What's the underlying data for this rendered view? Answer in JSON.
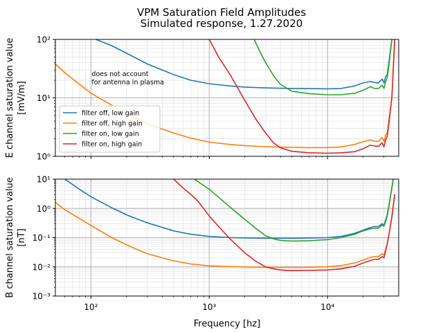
{
  "figure": {
    "title_line1": "VPM Saturation Field Amplitudes",
    "title_line2": "Simulated response, 1.27.2020",
    "xlabel": "Frequency [hz]"
  },
  "colors": {
    "filter_off_low": "#1f77b4",
    "filter_off_high": "#ff7f0e",
    "filter_on_low": "#2ca02c",
    "filter_on_high": "#d62728",
    "grid_major": "#b0b0b0",
    "grid_minor": "#e4e4e4"
  },
  "chart_data": [
    {
      "type": "line",
      "panel": "E",
      "ylabel_line1": "E channel saturation value",
      "ylabel_line2": "[mV/m]",
      "xscale": "log",
      "yscale": "log",
      "xlim": [
        50,
        40000
      ],
      "ylim": [
        1,
        100
      ],
      "x_ticks": [
        100,
        1000,
        10000
      ],
      "x_tick_labels": [
        "",
        "",
        ""
      ],
      "y_ticks": [
        1,
        10,
        100
      ],
      "y_tick_labels": [
        "10⁰",
        "10¹",
        "10²"
      ],
      "grid": true,
      "legend_position": "center-left",
      "annotation_line1": "does not account",
      "annotation_line2": "for antenna in plasma",
      "annotation_x": 100,
      "annotation_y": 20,
      "series": [
        {
          "name": "filter off, low gain",
          "color_key": "filter_off_low",
          "x": [
            110,
            150,
            200,
            300,
            500,
            700,
            1000,
            1500,
            2000,
            3000,
            5000,
            7000,
            10000,
            13000,
            17000,
            20000,
            23000,
            25000,
            27000,
            29000,
            30000,
            31000,
            32000,
            33000,
            35000,
            37000
          ],
          "y": [
            100,
            78,
            58,
            38,
            25,
            20,
            17.5,
            16,
            15.3,
            14.8,
            14.5,
            14.4,
            14.3,
            14.5,
            16,
            18,
            19,
            18.3,
            18,
            21,
            18,
            23,
            25,
            40,
            100,
            200
          ]
        },
        {
          "name": "filter off, high gain",
          "color_key": "filter_off_high",
          "x": [
            50,
            60,
            80,
            100,
            150,
            200,
            300,
            500,
            700,
            1000,
            1500,
            2000,
            3000,
            5000,
            7000,
            10000,
            13000,
            17000,
            20000,
            23000,
            25000,
            27000,
            29000,
            30000,
            31000,
            32000,
            33000,
            35000,
            37000
          ],
          "y": [
            38,
            27,
            17,
            12,
            7.5,
            5.3,
            3.6,
            2.5,
            2.05,
            1.75,
            1.6,
            1.52,
            1.46,
            1.42,
            1.41,
            1.41,
            1.45,
            1.6,
            1.78,
            1.9,
            1.82,
            1.8,
            2.1,
            1.8,
            2.3,
            2.5,
            4,
            10,
            100
          ]
        },
        {
          "name": "filter on, low gain",
          "color_key": "filter_on_low",
          "x": [
            2400,
            2700,
            3000,
            3500,
            4000,
            5000,
            7000,
            10000,
            13000,
            17000,
            20000,
            23000,
            25000,
            27000,
            29000,
            30000,
            31000,
            32000,
            33000,
            35000,
            37000
          ],
          "y": [
            100,
            60,
            40,
            24,
            17,
            13,
            11.8,
            11.3,
            11.3,
            12,
            13.5,
            15.5,
            14.5,
            14.5,
            16.5,
            14.5,
            19,
            22,
            35,
            100,
            200
          ]
        },
        {
          "name": "filter on, high gain",
          "color_key": "filter_on_high",
          "x": [
            1000,
            1200,
            1500,
            2000,
            2500,
            3000,
            3500,
            4000,
            5000,
            7000,
            10000,
            13000,
            17000,
            20000,
            23000,
            25000,
            27000,
            29000,
            30000,
            31000,
            32000,
            33000,
            35000,
            37000
          ],
          "y": [
            100,
            50,
            25,
            9,
            4.2,
            2.5,
            1.7,
            1.4,
            1.22,
            1.15,
            1.13,
            1.15,
            1.2,
            1.35,
            1.55,
            1.5,
            1.48,
            1.7,
            1.45,
            1.9,
            2.2,
            3.5,
            10,
            100
          ]
        }
      ]
    },
    {
      "type": "line",
      "panel": "B",
      "ylabel_line1": "B channel saturation value",
      "ylabel_line2": "[nT]",
      "xscale": "log",
      "yscale": "log",
      "xlim": [
        50,
        40000
      ],
      "ylim": [
        0.001,
        10
      ],
      "x_ticks": [
        100,
        1000,
        10000
      ],
      "x_tick_labels": [
        "10²",
        "10³",
        "10⁴"
      ],
      "y_ticks": [
        0.001,
        0.01,
        0.1,
        1,
        10
      ],
      "y_tick_labels": [
        "10⁻³",
        "10⁻²",
        "10⁻¹",
        "10⁰",
        "10¹"
      ],
      "grid": true,
      "series": [
        {
          "name": "filter off, low gain",
          "color_key": "filter_off_low",
          "x": [
            60,
            80,
            100,
            150,
            200,
            300,
            500,
            700,
            1000,
            1500,
            2000,
            3000,
            5000,
            7000,
            10000,
            13000,
            17000,
            20000,
            23000,
            25000,
            27000,
            29000,
            30000,
            31000,
            32000,
            33000,
            35000,
            37000
          ],
          "y": [
            10,
            4.5,
            2.5,
            1.05,
            0.6,
            0.32,
            0.17,
            0.13,
            0.11,
            0.1,
            0.098,
            0.095,
            0.095,
            0.097,
            0.1,
            0.11,
            0.14,
            0.18,
            0.22,
            0.24,
            0.24,
            0.3,
            0.26,
            0.4,
            0.6,
            1.2,
            5,
            20
          ]
        },
        {
          "name": "filter off, high gain",
          "color_key": "filter_off_high",
          "x": [
            50,
            60,
            80,
            100,
            150,
            200,
            300,
            500,
            700,
            1000,
            1500,
            2000,
            3000,
            5000,
            7000,
            10000,
            13000,
            17000,
            20000,
            23000,
            25000,
            27000,
            29000,
            30000,
            31000,
            32000,
            33000,
            35000,
            37000
          ],
          "y": [
            1.6,
            0.9,
            0.45,
            0.26,
            0.1,
            0.056,
            0.028,
            0.016,
            0.0125,
            0.0108,
            0.0102,
            0.0099,
            0.0097,
            0.0096,
            0.0097,
            0.0101,
            0.011,
            0.0135,
            0.017,
            0.021,
            0.0225,
            0.0225,
            0.028,
            0.025,
            0.04,
            0.06,
            0.12,
            0.5,
            3
          ]
        },
        {
          "name": "filter on, low gain",
          "color_key": "filter_on_low",
          "x": [
            750,
            900,
            1000,
            1200,
            1500,
            2000,
            2500,
            3000,
            3500,
            4000,
            5000,
            7000,
            10000,
            13000,
            17000,
            20000,
            23000,
            25000,
            27000,
            29000,
            30000,
            31000,
            32000,
            33000,
            35000,
            37000
          ],
          "y": [
            10,
            6,
            4.5,
            2.4,
            1.1,
            0.42,
            0.2,
            0.115,
            0.09,
            0.08,
            0.076,
            0.078,
            0.085,
            0.1,
            0.13,
            0.17,
            0.2,
            0.21,
            0.21,
            0.27,
            0.24,
            0.35,
            0.55,
            1.1,
            5,
            20
          ]
        },
        {
          "name": "filter on, high gain",
          "color_key": "filter_on_high",
          "x": [
            500,
            600,
            700,
            800,
            1000,
            1200,
            1500,
            2000,
            2500,
            3000,
            3500,
            4000,
            5000,
            7000,
            10000,
            13000,
            17000,
            20000,
            23000,
            25000,
            27000,
            29000,
            30000,
            31000,
            32000,
            33000,
            35000,
            37000
          ],
          "y": [
            10,
            5,
            3,
            1.8,
            0.55,
            0.24,
            0.09,
            0.03,
            0.015,
            0.01,
            0.0085,
            0.0078,
            0.0074,
            0.0075,
            0.0078,
            0.0085,
            0.0105,
            0.0135,
            0.0165,
            0.018,
            0.018,
            0.0225,
            0.02,
            0.035,
            0.06,
            0.12,
            0.5,
            3
          ]
        }
      ]
    }
  ]
}
